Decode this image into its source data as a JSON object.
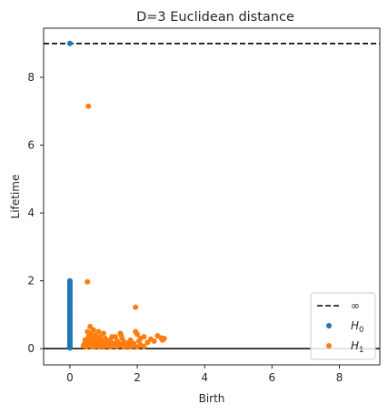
{
  "chart_data": {
    "type": "scatter",
    "title": "D=3 Euclidean distance",
    "xlabel": "Birth",
    "ylabel": "Lifetime",
    "xlim": [
      -0.78,
      9.2
    ],
    "ylim": [
      -0.48,
      9.45
    ],
    "xticks": [
      0,
      2,
      4,
      6,
      8
    ],
    "yticks": [
      0,
      2,
      4,
      6,
      8
    ],
    "grid": false,
    "legend_position": "bottom-right",
    "infinity_line": {
      "label": "∞",
      "y": 9.0,
      "style": "dashed",
      "color": "#000000"
    },
    "diagonal_line": {
      "y": 0,
      "color": "#000000"
    },
    "series": [
      {
        "name": "H",
        "subscript": "0",
        "color": "#1f77b4",
        "points": [
          [
            0,
            9.0
          ],
          [
            0,
            2.0
          ],
          [
            0,
            1.95
          ],
          [
            0,
            1.9
          ],
          [
            0,
            1.85
          ],
          [
            0,
            1.8
          ],
          [
            0,
            1.75
          ],
          [
            0,
            1.7
          ],
          [
            0,
            1.65
          ],
          [
            0,
            1.6
          ],
          [
            0,
            1.55
          ],
          [
            0,
            1.5
          ],
          [
            0,
            1.45
          ],
          [
            0,
            1.4
          ],
          [
            0,
            1.35
          ],
          [
            0,
            1.3
          ],
          [
            0,
            1.25
          ],
          [
            0,
            1.2
          ],
          [
            0,
            1.15
          ],
          [
            0,
            1.1
          ],
          [
            0,
            1.05
          ],
          [
            0,
            1.0
          ],
          [
            0,
            0.95
          ],
          [
            0,
            0.9
          ],
          [
            0,
            0.85
          ],
          [
            0,
            0.8
          ],
          [
            0,
            0.75
          ],
          [
            0,
            0.7
          ],
          [
            0,
            0.65
          ],
          [
            0,
            0.6
          ],
          [
            0,
            0.55
          ],
          [
            0,
            0.5
          ],
          [
            0,
            0.45
          ],
          [
            0,
            0.4
          ],
          [
            0,
            0.35
          ],
          [
            0,
            0.3
          ],
          [
            0,
            0.25
          ],
          [
            0,
            0.2
          ],
          [
            0,
            0.15
          ],
          [
            0,
            0.1
          ],
          [
            0,
            0.05
          ],
          [
            0,
            0.02
          ]
        ]
      },
      {
        "name": "H",
        "subscript": "1",
        "color": "#ff7f0e",
        "points": [
          [
            0.55,
            7.15
          ],
          [
            0.52,
            1.97
          ],
          [
            1.95,
            1.22
          ],
          [
            0.6,
            0.65
          ],
          [
            0.7,
            0.55
          ],
          [
            0.85,
            0.5
          ],
          [
            1.0,
            0.45
          ],
          [
            1.5,
            0.45
          ],
          [
            1.52,
            0.4
          ],
          [
            1.35,
            0.35
          ],
          [
            1.95,
            0.5
          ],
          [
            2.0,
            0.42
          ],
          [
            2.2,
            0.35
          ],
          [
            2.1,
            0.3
          ],
          [
            2.4,
            0.28
          ],
          [
            2.6,
            0.38
          ],
          [
            2.7,
            0.32
          ],
          [
            2.75,
            0.25
          ],
          [
            2.8,
            0.3
          ],
          [
            2.5,
            0.22
          ],
          [
            2.3,
            0.18
          ],
          [
            2.05,
            0.22
          ],
          [
            1.9,
            0.15
          ],
          [
            1.8,
            0.25
          ],
          [
            1.7,
            0.12
          ],
          [
            1.6,
            0.2
          ],
          [
            1.4,
            0.22
          ],
          [
            1.3,
            0.15
          ],
          [
            1.2,
            0.25
          ],
          [
            1.1,
            0.18
          ],
          [
            1.05,
            0.3
          ],
          [
            0.95,
            0.22
          ],
          [
            0.9,
            0.35
          ],
          [
            0.8,
            0.28
          ],
          [
            0.75,
            0.4
          ],
          [
            0.65,
            0.3
          ],
          [
            0.6,
            0.45
          ],
          [
            0.58,
            0.2
          ],
          [
            0.55,
            0.35
          ],
          [
            0.5,
            0.15
          ],
          [
            0.45,
            0.25
          ],
          [
            0.42,
            0.12
          ],
          [
            0.4,
            0.08
          ],
          [
            0.48,
            0.05
          ],
          [
            0.6,
            0.1
          ],
          [
            0.7,
            0.15
          ],
          [
            0.8,
            0.08
          ],
          [
            0.9,
            0.12
          ],
          [
            1.0,
            0.06
          ],
          [
            1.1,
            0.1
          ],
          [
            1.2,
            0.05
          ],
          [
            1.3,
            0.08
          ],
          [
            1.4,
            0.06
          ],
          [
            1.5,
            0.1
          ],
          [
            1.6,
            0.05
          ],
          [
            1.7,
            0.07
          ],
          [
            1.8,
            0.05
          ],
          [
            1.9,
            0.08
          ],
          [
            2.0,
            0.05
          ],
          [
            2.1,
            0.1
          ],
          [
            2.2,
            0.06
          ],
          [
            0.65,
            0.05
          ],
          [
            0.75,
            0.22
          ],
          [
            0.85,
            0.18
          ],
          [
            0.95,
            0.1
          ],
          [
            1.15,
            0.12
          ],
          [
            1.25,
            0.35
          ],
          [
            1.45,
            0.15
          ],
          [
            1.55,
            0.3
          ],
          [
            1.65,
            0.1
          ],
          [
            1.75,
            0.18
          ],
          [
            0.52,
            0.5
          ],
          [
            0.68,
            0.38
          ],
          [
            0.78,
            0.12
          ],
          [
            0.88,
            0.05
          ],
          [
            0.98,
            0.2
          ],
          [
            1.08,
            0.08
          ],
          [
            1.18,
            0.15
          ],
          [
            0.62,
            0.25
          ],
          [
            0.72,
            0.06
          ],
          [
            0.82,
            0.32
          ],
          [
            0.92,
            0.25
          ]
        ]
      }
    ]
  }
}
